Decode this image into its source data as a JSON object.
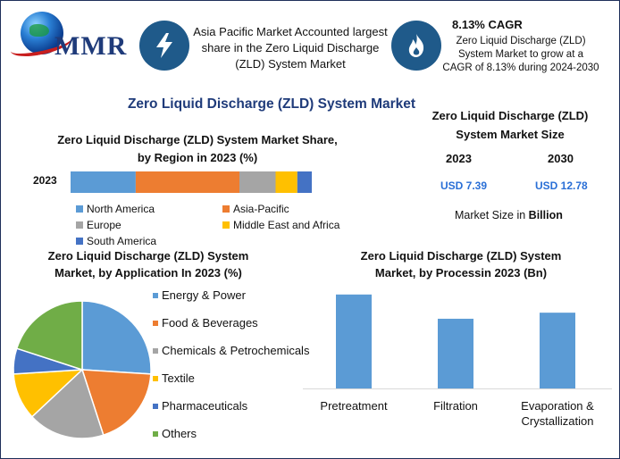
{
  "brand": {
    "logo_text": "MMR"
  },
  "colors": {
    "accent": "#1f3b7a",
    "badge": "#1f5a8a",
    "value_blue": "#2a6fd6",
    "north_america": "#5b9bd5",
    "asia_pacific": "#ed7d31",
    "europe": "#a5a5a5",
    "mea": "#ffc000",
    "south_america": "#4472c4",
    "others": "#70ad47"
  },
  "header": {
    "highlight1": {
      "icon": "lightning-icon",
      "text": "Asia Pacific Market Accounted largest share in the Zero Liquid Discharge (ZLD) System Market"
    },
    "highlight2": {
      "icon": "flame-icon",
      "title": "8.13% CAGR",
      "text": "Zero Liquid Discharge (ZLD) System Market to grow at a CAGR of 8.13% during 2024-2030"
    }
  },
  "main_title": "Zero Liquid Discharge (ZLD) System Market",
  "market_size": {
    "title": "Zero Liquid Discharge (ZLD) System Market Size",
    "year1": "2023",
    "year2": "2030",
    "value1": "USD 7.39",
    "value2": "USD 12.78",
    "unit_prefix": "Market Size in ",
    "unit_bold": "Billion"
  },
  "chart_data": [
    {
      "type": "bar",
      "orientation": "horizontal-stacked",
      "title": "Zero Liquid Discharge (ZLD) System Market Share, by Region in 2023 (%)",
      "categories": [
        "2023"
      ],
      "series": [
        {
          "name": "North America",
          "values": [
            27
          ],
          "color": "#5b9bd5"
        },
        {
          "name": "Asia-Pacific",
          "values": [
            43
          ],
          "color": "#ed7d31"
        },
        {
          "name": "Europe",
          "values": [
            15
          ],
          "color": "#a5a5a5"
        },
        {
          "name": "Middle East and Africa",
          "values": [
            9
          ],
          "color": "#ffc000"
        },
        {
          "name": "South America",
          "values": [
            6
          ],
          "color": "#4472c4"
        }
      ],
      "legend": "bottom"
    },
    {
      "type": "pie",
      "title": "Zero Liquid Discharge (ZLD) System Market, by Application In 2023 (%)",
      "labels": [
        "Energy & Power",
        "Food & Beverages",
        "Chemicals & Petrochemicals",
        "Textile",
        "Pharmaceuticals",
        "Others"
      ],
      "values": [
        26,
        19,
        18,
        11,
        6,
        20
      ],
      "colors": [
        "#5b9bd5",
        "#ed7d31",
        "#a5a5a5",
        "#ffc000",
        "#4472c4",
        "#70ad47"
      ],
      "legend": "right"
    },
    {
      "type": "bar",
      "title": "Zero Liquid Discharge (ZLD) System Market, by Processin 2023 (Bn)",
      "categories": [
        "Pretreatment",
        "Filtration",
        "Evaporation & Crystallization"
      ],
      "values": [
        3.1,
        2.3,
        2.5
      ],
      "ylim": [
        0,
        3.3
      ],
      "color": "#5b9bd5",
      "grid": false
    }
  ]
}
